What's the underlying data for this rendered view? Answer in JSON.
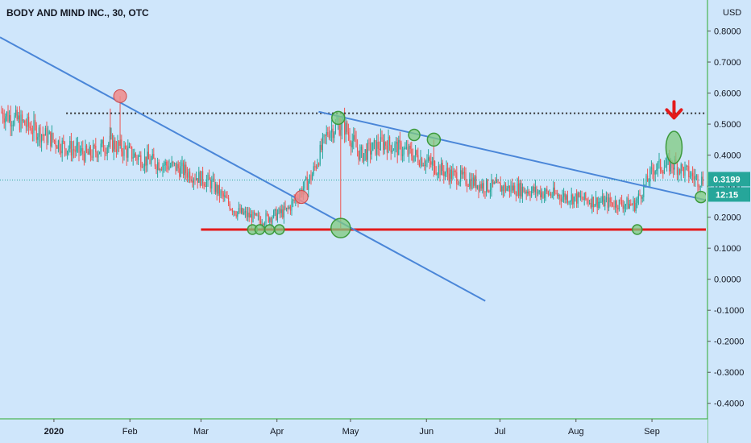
{
  "header": {
    "title": "BODY AND MIND INC., 30, OTC"
  },
  "colors": {
    "background": "#cfe6fb",
    "up": "#26a69a",
    "down": "#ef5350",
    "trendline": "#4a86d8",
    "support": "#e31b1b",
    "resistance": "#333333",
    "axis_line": "#2eaa2e",
    "price_badge": "#26a69a",
    "marker_green": "#7fc97f",
    "marker_red": "#f08a8a",
    "arrow": "#e31b1b"
  },
  "price_badge": {
    "price": "0.3199",
    "countdown": "12:15"
  },
  "chart_data": {
    "type": "candlestick",
    "title": "BODY AND MIND INC., 30, OTC",
    "currency_label": "USD",
    "ylim": [
      -0.45,
      0.9
    ],
    "y_ticks": [
      "0.8000",
      "0.7000",
      "0.6000",
      "0.5000",
      "0.4000",
      "0.3000",
      "0.2000",
      "0.1000",
      "0.0000",
      "-0.1000",
      "-0.2000",
      "-0.3000",
      "-0.4000"
    ],
    "y_tick_values": [
      0.8,
      0.7,
      0.6,
      0.5,
      0.4,
      0.3,
      0.2,
      0.1,
      0.0,
      -0.1,
      -0.2,
      -0.3,
      -0.4
    ],
    "x_ticks": [
      "2020",
      "Feb",
      "Mar",
      "Apr",
      "May",
      "Jun",
      "Jul",
      "Aug",
      "Sep"
    ],
    "x_tick_dates": [
      "2020-01-01",
      "2020-02-01",
      "2020-03-01",
      "2020-04-01",
      "2020-05-01",
      "2020-06-01",
      "2020-07-01",
      "2020-08-01",
      "2020-09-01"
    ],
    "x_range": [
      "2019-12-10",
      "2020-09-23"
    ],
    "approx_price_path": [
      {
        "date": "2019-12-10",
        "price": 0.54
      },
      {
        "date": "2019-12-20",
        "price": 0.5
      },
      {
        "date": "2020-01-05",
        "price": 0.43
      },
      {
        "date": "2020-01-15",
        "price": 0.4
      },
      {
        "date": "2020-01-24",
        "price": 0.44
      },
      {
        "date": "2020-02-05",
        "price": 0.39
      },
      {
        "date": "2020-02-20",
        "price": 0.36
      },
      {
        "date": "2020-03-05",
        "price": 0.31
      },
      {
        "date": "2020-03-15",
        "price": 0.22
      },
      {
        "date": "2020-03-25",
        "price": 0.19
      },
      {
        "date": "2020-04-05",
        "price": 0.22
      },
      {
        "date": "2020-04-15",
        "price": 0.33
      },
      {
        "date": "2020-04-22",
        "price": 0.48
      },
      {
        "date": "2020-04-28",
        "price": 0.5
      },
      {
        "date": "2020-05-05",
        "price": 0.4
      },
      {
        "date": "2020-05-15",
        "price": 0.44
      },
      {
        "date": "2020-05-27",
        "price": 0.4
      },
      {
        "date": "2020-06-10",
        "price": 0.34
      },
      {
        "date": "2020-06-25",
        "price": 0.3
      },
      {
        "date": "2020-07-10",
        "price": 0.29
      },
      {
        "date": "2020-07-25",
        "price": 0.27
      },
      {
        "date": "2020-08-10",
        "price": 0.25
      },
      {
        "date": "2020-08-25",
        "price": 0.24
      },
      {
        "date": "2020-09-02",
        "price": 0.36
      },
      {
        "date": "2020-09-10",
        "price": 0.37
      },
      {
        "date": "2020-09-20",
        "price": 0.32
      }
    ],
    "annotations": {
      "support_level": 0.16,
      "resistance_level": 0.535,
      "last_price": 0.3199,
      "downtrend_line_1": [
        {
          "date": "2019-12-10",
          "price": 0.78
        },
        {
          "date": "2020-06-25",
          "price": -0.07
        }
      ],
      "downtrend_line_2": [
        {
          "date": "2020-04-18",
          "price": 0.54
        },
        {
          "date": "2020-09-23",
          "price": 0.255
        }
      ],
      "green_markers": [
        {
          "date": "2020-03-22",
          "price": 0.16
        },
        {
          "date": "2020-03-25",
          "price": 0.16
        },
        {
          "date": "2020-03-29",
          "price": 0.16
        },
        {
          "date": "2020-04-02",
          "price": 0.16
        },
        {
          "date": "2020-04-26",
          "price": 0.52
        },
        {
          "date": "2020-04-27",
          "price": 0.165
        },
        {
          "date": "2020-05-27",
          "price": 0.465
        },
        {
          "date": "2020-06-04",
          "price": 0.45
        },
        {
          "date": "2020-08-26",
          "price": 0.16
        },
        {
          "date": "2020-09-10",
          "price": 0.425
        },
        {
          "date": "2020-09-21",
          "price": 0.265
        }
      ],
      "red_markers": [
        {
          "date": "2020-01-28",
          "price": 0.59
        },
        {
          "date": "2020-04-11",
          "price": 0.265
        }
      ],
      "down_arrow": {
        "date": "2020-09-10",
        "price": 0.52
      }
    }
  }
}
